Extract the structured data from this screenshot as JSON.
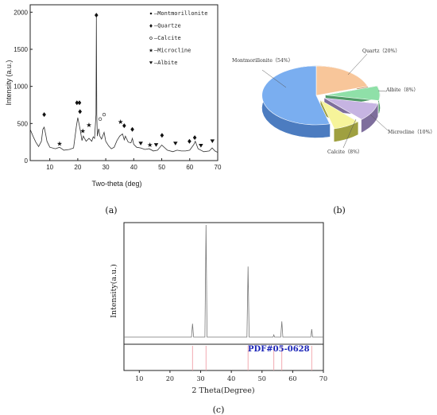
{
  "chart_data": [
    {
      "type": "line",
      "panel_label": "(a)",
      "xlabel": "Two-theta (deg)",
      "ylabel": "Intensity (a.u.)",
      "xlim": [
        3,
        70
      ],
      "ylim": [
        0,
        2100
      ],
      "xticks": [
        "10",
        "20",
        "30",
        "40",
        "50",
        "60",
        "70"
      ],
      "yticks": [
        "0",
        "500",
        "1000",
        "1500",
        "2000"
      ],
      "legend": {
        "position": "top-right",
        "entries": [
          {
            "symbol": "dot",
            "label": "Montmorillonite"
          },
          {
            "symbol": "diamond",
            "label": "Quartze"
          },
          {
            "symbol": "circle",
            "label": "Calcite"
          },
          {
            "symbol": "star",
            "label": "Microcline"
          },
          {
            "symbol": "triangle",
            "label": "Albite"
          }
        ]
      },
      "series": [
        {
          "x": [
            3,
            4,
            5,
            6,
            7,
            7.5,
            8,
            8.5,
            9,
            10,
            12,
            13.5,
            15,
            17,
            18.5,
            19.5,
            20,
            20.8,
            21.5,
            22,
            23,
            24,
            25,
            25.5,
            26,
            26.5,
            26.65,
            26.8,
            27,
            27.5,
            27.9,
            28.5,
            29.4,
            30,
            31,
            32,
            33,
            34,
            35,
            36,
            36.6,
            37,
            38,
            39,
            39.5,
            40,
            41,
            42.5,
            44,
            45.5,
            47,
            48.5,
            50,
            52,
            54,
            55.5,
            57,
            58.5,
            60,
            61.5,
            62,
            63,
            65,
            67,
            68,
            69,
            70
          ],
          "values": [
            420,
            330,
            250,
            190,
            260,
            420,
            450,
            360,
            260,
            180,
            160,
            180,
            140,
            150,
            170,
            460,
            580,
            430,
            270,
            330,
            260,
            300,
            260,
            320,
            300,
            620,
            1950,
            620,
            330,
            430,
            330,
            290,
            380,
            260,
            200,
            160,
            180,
            270,
            330,
            360,
            280,
            330,
            250,
            240,
            300,
            220,
            180,
            170,
            150,
            160,
            130,
            140,
            210,
            140,
            120,
            140,
            130,
            130,
            140,
            220,
            260,
            160,
            120,
            130,
            170,
            130,
            110
          ]
        }
      ],
      "markers": [
        {
          "symbol": "diamond",
          "x": 8,
          "y": 620
        },
        {
          "symbol": "star",
          "x": 13.5,
          "y": 230
        },
        {
          "symbol": "diamond",
          "x": 19.7,
          "y": 780
        },
        {
          "symbol": "diamond",
          "x": 20.6,
          "y": 780
        },
        {
          "symbol": "diamond",
          "x": 20.8,
          "y": 660
        },
        {
          "symbol": "star",
          "x": 21.8,
          "y": 400
        },
        {
          "symbol": "star",
          "x": 24.0,
          "y": 480
        },
        {
          "symbol": "diamond",
          "x": 26.65,
          "y": 1960
        },
        {
          "symbol": "circle",
          "x": 28.0,
          "y": 560
        },
        {
          "symbol": "circle",
          "x": 29.4,
          "y": 620
        },
        {
          "symbol": "star",
          "x": 35.3,
          "y": 520
        },
        {
          "symbol": "diamond",
          "x": 36.6,
          "y": 470
        },
        {
          "symbol": "diamond",
          "x": 39.5,
          "y": 420
        },
        {
          "symbol": "triangle",
          "x": 42.5,
          "y": 230
        },
        {
          "symbol": "star",
          "x": 45.8,
          "y": 210
        },
        {
          "symbol": "triangle",
          "x": 48.0,
          "y": 210
        },
        {
          "symbol": "diamond",
          "x": 50.1,
          "y": 340
        },
        {
          "symbol": "triangle",
          "x": 54.9,
          "y": 230
        },
        {
          "symbol": "diamond",
          "x": 59.9,
          "y": 260
        },
        {
          "symbol": "diamond",
          "x": 61.8,
          "y": 310
        },
        {
          "symbol": "triangle",
          "x": 64.0,
          "y": 200
        },
        {
          "symbol": "triangle",
          "x": 68.1,
          "y": 260
        }
      ]
    },
    {
      "type": "pie",
      "panel_label": "(b)",
      "slices": [
        {
          "label": "Montmorillonite（54%）",
          "value": 54,
          "color": "#7aaef0",
          "side": "#4c7cc0"
        },
        {
          "label": "Quartz（20%）",
          "value": 20,
          "color": "#f8c69a",
          "side": "#c49068"
        },
        {
          "label": "Albite（8%）",
          "value": 8,
          "color": "#8fe0a8",
          "side": "#4f9a66"
        },
        {
          "label": "Microcline（10%）",
          "value": 10,
          "color": "#c6b4e2",
          "side": "#7e6e9c"
        },
        {
          "label": "Calcite（8%）",
          "value": 8,
          "color": "#f6f49a",
          "side": "#9fa040"
        }
      ]
    },
    {
      "type": "line",
      "panel_label": "(c)",
      "xlabel": "2 Theta(Degree)",
      "ylabel": "Intensity(a.u.)",
      "xlim": [
        5,
        70
      ],
      "xticks": [
        "10",
        "20",
        "30",
        "40",
        "50",
        "60",
        "70"
      ],
      "reference_label": "PDF#05-0628",
      "series": [
        {
          "x": [
            5,
            27.0,
            27.35,
            27.7,
            31.4,
            31.75,
            32.1,
            45.1,
            45.45,
            45.8,
            53.6,
            53.85,
            54.1,
            56.1,
            56.45,
            56.8,
            65.9,
            66.2,
            66.5,
            70
          ],
          "values": [
            0,
            0,
            12,
            0,
            0,
            100,
            0,
            0,
            63,
            0,
            0,
            2,
            0,
            0,
            14,
            0,
            0,
            7,
            0,
            0
          ]
        }
      ],
      "reference_lines": [
        27.35,
        31.75,
        45.45,
        53.85,
        56.45,
        66.2
      ]
    }
  ]
}
